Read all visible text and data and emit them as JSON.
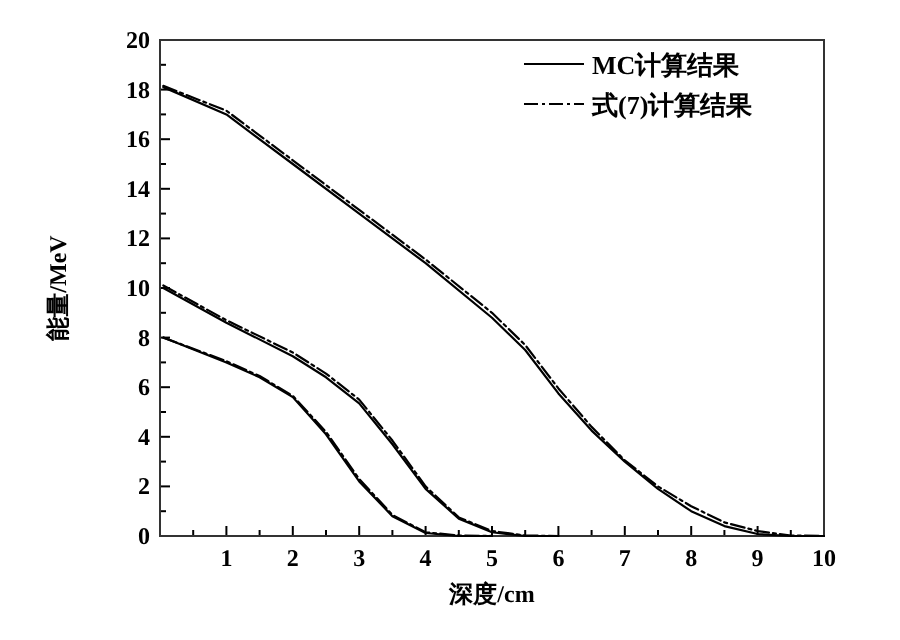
{
  "chart_data": {
    "type": "line",
    "xlabel": "深度/cm",
    "ylabel": "能量/MeV",
    "xlim": [
      0,
      10
    ],
    "ylim": [
      0,
      20
    ],
    "xticks": [
      {
        "value": 0.5,
        "label": null
      },
      1,
      {
        "value": 1.5,
        "label": null
      },
      2,
      {
        "value": 2.5,
        "label": null
      },
      3,
      {
        "value": 3.5,
        "label": null
      },
      4,
      {
        "value": 4.5,
        "label": null
      },
      5,
      {
        "value": 5.5,
        "label": null
      },
      6,
      {
        "value": 6.5,
        "label": null
      },
      7,
      {
        "value": 7.5,
        "label": null
      },
      8,
      {
        "value": 8.5,
        "label": null
      },
      9,
      {
        "value": 9.5,
        "label": null
      },
      10
    ],
    "yticks": [
      0,
      {
        "value": 1,
        "label": null
      },
      2,
      {
        "value": 3,
        "label": null
      },
      4,
      {
        "value": 5,
        "label": null
      },
      6,
      {
        "value": 7,
        "label": null
      },
      8,
      {
        "value": 9,
        "label": null
      },
      10,
      {
        "value": 11,
        "label": null
      },
      12,
      {
        "value": 13,
        "label": null
      },
      14,
      {
        "value": 15,
        "label": null
      },
      16,
      {
        "value": 17,
        "label": null
      },
      18,
      {
        "value": 19,
        "label": null
      },
      20
    ],
    "grid": false,
    "legend": "top right",
    "marker": "none",
    "series": [
      {
        "name": "MC计算结果",
        "color": "#000000",
        "line_style": "solid",
        "x": [
          0.05,
          1,
          2,
          3,
          4,
          5,
          5.5,
          6,
          6.5,
          7,
          7.5,
          8,
          8.5,
          9,
          9.5,
          10
        ],
        "values": [
          18.1,
          17.0,
          15.0,
          13.0,
          11.0,
          8.8,
          7.5,
          5.75,
          4.25,
          3.0,
          1.9,
          1.0,
          0.4,
          0.08,
          0,
          0
        ]
      },
      {
        "name": "式(7)计算结果",
        "color": "#000000",
        "line_style": "dashed",
        "x": [
          0.05,
          1,
          2,
          3,
          4,
          5,
          5.5,
          6,
          6.5,
          7,
          7.5,
          8,
          8.5,
          9,
          9.5,
          10
        ],
        "values": [
          18.15,
          17.15,
          15.15,
          13.15,
          11.15,
          9.0,
          7.7,
          5.95,
          4.4,
          3.05,
          2.0,
          1.2,
          0.55,
          0.2,
          0.02,
          0
        ]
      },
      {
        "color": "#000000",
        "line_style": "solid",
        "x": [
          0.05,
          1,
          2,
          2.5,
          3,
          3.5,
          4,
          4.5,
          5,
          5.5,
          6
        ],
        "values": [
          10.0,
          8.6,
          7.25,
          6.4,
          5.35,
          3.7,
          1.9,
          0.7,
          0.15,
          0,
          0
        ]
      },
      {
        "color": "#000000",
        "line_style": "dashed",
        "x": [
          0.05,
          1,
          2,
          2.5,
          3,
          3.5,
          4,
          4.5,
          5,
          5.5,
          6
        ],
        "values": [
          10.1,
          8.7,
          7.4,
          6.55,
          5.5,
          3.85,
          2.0,
          0.75,
          0.2,
          0.02,
          0
        ]
      },
      {
        "color": "#000000",
        "line_style": "solid",
        "x": [
          0.05,
          1,
          1.5,
          2,
          2.5,
          3,
          3.5,
          4,
          4.5,
          5
        ],
        "values": [
          8.0,
          7.0,
          6.4,
          5.6,
          4.1,
          2.2,
          0.8,
          0.12,
          0,
          0
        ]
      },
      {
        "color": "#000000",
        "line_style": "dashed",
        "x": [
          0.05,
          1,
          1.5,
          2,
          2.5,
          3,
          3.5,
          4,
          4.5,
          5
        ],
        "values": [
          8.0,
          7.05,
          6.45,
          5.65,
          4.2,
          2.3,
          0.85,
          0.15,
          0.02,
          0
        ]
      }
    ]
  }
}
